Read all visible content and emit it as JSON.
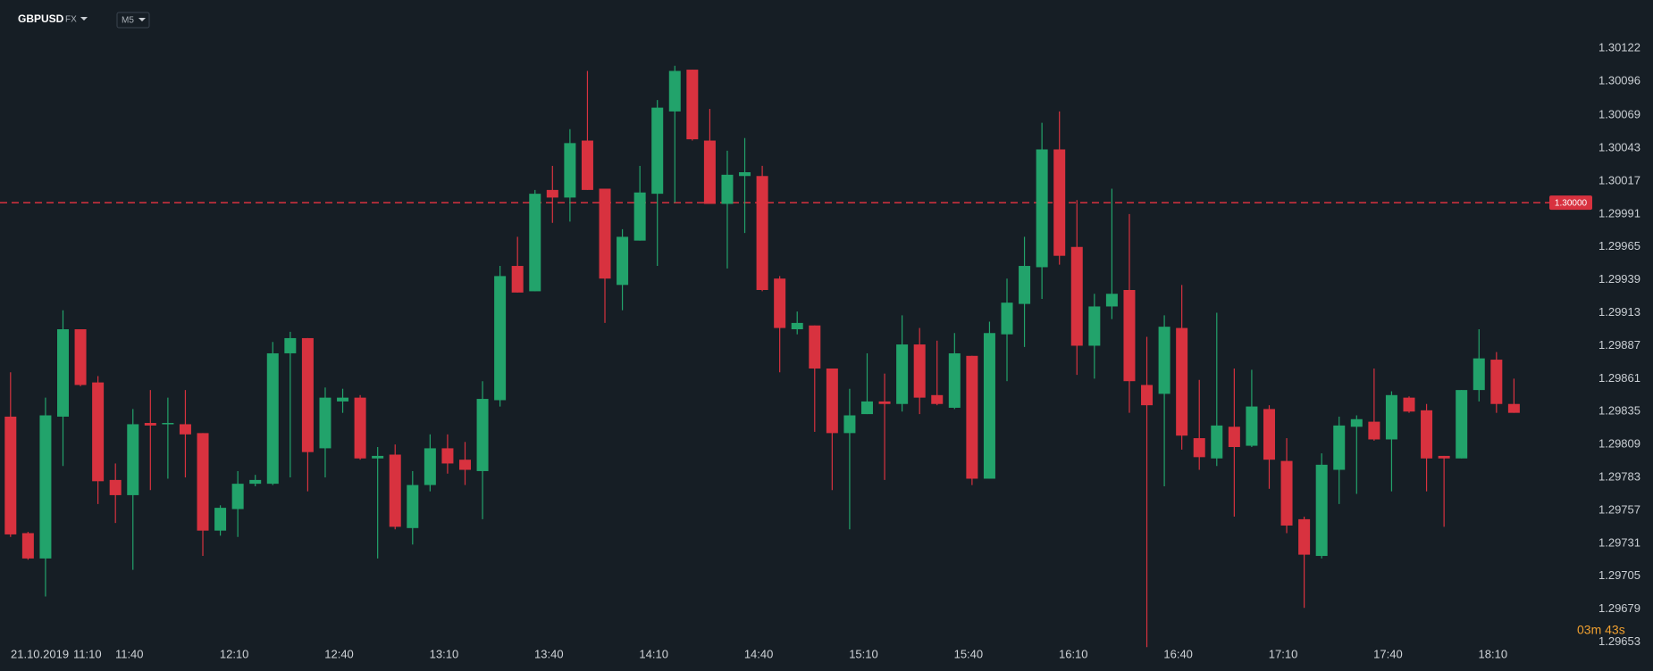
{
  "chart_data": {
    "type": "candlestick",
    "symbol": "GBPUSD",
    "market": "FX",
    "interval": "M5",
    "date_label": "21.10.2019",
    "countdown": "03m 43s",
    "up_color": "#22a36b",
    "down_color": "#d8323f",
    "price_line_color": "#d8323f",
    "current_price": {
      "value": 1.3,
      "label": "1.30000"
    },
    "ylim": [
      1.2964,
      1.3016
    ],
    "yticks": [
      1.30122,
      1.30096,
      1.30069,
      1.30043,
      1.30017,
      1.29991,
      1.29965,
      1.29939,
      1.29913,
      1.29887,
      1.29861,
      1.29835,
      1.29809,
      1.29783,
      1.29757,
      1.29731,
      1.29705,
      1.29679,
      1.29653
    ],
    "categories": [
      null,
      "11:10",
      null,
      null,
      null,
      null,
      null,
      "11:40",
      null,
      null,
      null,
      null,
      null,
      "12:10",
      null,
      null,
      null,
      null,
      null,
      "12:40",
      null,
      null,
      null,
      null,
      null,
      "13:10",
      null,
      null,
      null,
      null,
      null,
      "13:40",
      null,
      null,
      null,
      null,
      null,
      "14:10",
      null,
      null,
      null,
      null,
      null,
      "14:40",
      null,
      null,
      null,
      null,
      null,
      "15:10",
      null,
      null,
      null,
      null,
      null,
      "15:40",
      null,
      null,
      null,
      null,
      null,
      "16:10",
      null,
      null,
      null,
      null,
      null,
      "16:40",
      null,
      null,
      null,
      null,
      null,
      "17:10",
      null,
      null,
      null,
      null,
      null,
      "17:40",
      null,
      null,
      null,
      null,
      null,
      "18:10",
      null
    ],
    "open": [
      1.29831,
      1.29739,
      1.29719,
      1.29831,
      1.299,
      1.29858,
      1.29781,
      1.29769,
      1.29826,
      1.29825,
      1.29825,
      1.29818,
      1.29741,
      1.29758,
      1.29778,
      1.29778,
      1.29881,
      1.29893,
      1.29806,
      1.29843,
      1.29846,
      1.29798,
      1.29801,
      1.29743,
      1.29777,
      1.29806,
      1.29797,
      1.29788,
      1.29844,
      1.2995,
      1.2993,
      1.3001,
      1.30004,
      1.30049,
      1.30011,
      1.29935,
      1.2997,
      1.30007,
      1.30072,
      1.30105,
      1.30049,
      1.29999,
      1.30021,
      1.30021,
      1.2994,
      1.299,
      1.29903,
      1.29869,
      1.29818,
      1.29833,
      1.29843,
      1.29841,
      1.29888,
      1.29848,
      1.29838,
      1.29879,
      1.29782,
      1.29896,
      1.2992,
      1.29949,
      1.30042,
      1.29965,
      1.29887,
      1.29918,
      1.29931,
      1.29856,
      1.29849,
      1.29901,
      1.29814,
      1.29798,
      1.29823,
      1.29808,
      1.29837,
      1.29796,
      1.2975,
      1.29721,
      1.29789,
      1.29823,
      1.29827,
      1.29813,
      1.29846,
      1.29836,
      1.298,
      1.29798,
      1.29852,
      1.29876,
      1.29841
    ],
    "high": [
      1.29866,
      1.2974,
      1.29846,
      1.29915,
      1.299,
      1.29863,
      1.29794,
      1.29837,
      1.29852,
      1.29846,
      1.29852,
      1.29818,
      1.29761,
      1.29788,
      1.29785,
      1.2989,
      1.29898,
      1.29893,
      1.29854,
      1.29853,
      1.29848,
      1.29807,
      1.29809,
      1.29788,
      1.29817,
      1.29817,
      1.29811,
      1.29859,
      1.2995,
      1.29973,
      1.3001,
      1.30029,
      1.30058,
      1.30104,
      1.30011,
      1.29979,
      1.30029,
      1.30081,
      1.30108,
      1.30105,
      1.30074,
      1.30041,
      1.30051,
      1.30029,
      1.29942,
      1.29914,
      1.29903,
      1.29869,
      1.29853,
      1.29881,
      1.29865,
      1.29911,
      1.29901,
      1.29891,
      1.29897,
      1.29879,
      1.29906,
      1.2994,
      1.29973,
      1.30063,
      1.30072,
      1.30002,
      1.29928,
      1.30011,
      1.29991,
      1.29894,
      1.29911,
      1.29935,
      1.2986,
      1.29913,
      1.29869,
      1.29868,
      1.2984,
      1.29814,
      1.29752,
      1.29802,
      1.29831,
      1.29832,
      1.29869,
      1.29851,
      1.29847,
      1.29841,
      1.298,
      1.29852,
      1.299,
      1.29882,
      1.29861
    ],
    "low": [
      1.29736,
      1.29718,
      1.29689,
      1.29792,
      1.29855,
      1.29762,
      1.29747,
      1.2971,
      1.29773,
      1.29782,
      1.29783,
      1.29721,
      1.29737,
      1.29736,
      1.29776,
      1.29777,
      1.29783,
      1.29772,
      1.29783,
      1.29834,
      1.29797,
      1.29719,
      1.29742,
      1.2973,
      1.29772,
      1.29786,
      1.29777,
      1.2975,
      1.29839,
      1.29929,
      1.2993,
      1.29984,
      1.29985,
      1.3001,
      1.29905,
      1.29915,
      1.2997,
      1.2995,
      1.3,
      1.30049,
      1.29999,
      1.29948,
      1.29976,
      1.2993,
      1.29866,
      1.29896,
      1.29819,
      1.29773,
      1.29742,
      1.29833,
      1.29781,
      1.29835,
      1.29833,
      1.2984,
      1.29837,
      1.29777,
      1.29782,
      1.29859,
      1.29886,
      1.29924,
      1.29951,
      1.29864,
      1.29861,
      1.29908,
      1.29834,
      1.29649,
      1.29776,
      1.29805,
      1.29789,
      1.29792,
      1.29752,
      1.29807,
      1.29774,
      1.29739,
      1.2968,
      1.29719,
      1.29762,
      1.2977,
      1.29812,
      1.29772,
      1.29834,
      1.29772,
      1.29744,
      1.29798,
      1.29843,
      1.29834,
      1.29834
    ],
    "close": [
      1.29738,
      1.29719,
      1.29832,
      1.299,
      1.29856,
      1.2978,
      1.29769,
      1.29825,
      1.29824,
      1.29826,
      1.29817,
      1.29741,
      1.29759,
      1.29778,
      1.29781,
      1.29881,
      1.29893,
      1.29803,
      1.29846,
      1.29846,
      1.29798,
      1.298,
      1.29744,
      1.29777,
      1.29806,
      1.29794,
      1.29789,
      1.29845,
      1.29942,
      1.29929,
      1.30007,
      1.30004,
      1.30047,
      1.3001,
      1.2994,
      1.29973,
      1.30008,
      1.30075,
      1.30104,
      1.3005,
      1.29999,
      1.30022,
      1.30024,
      1.29931,
      1.29901,
      1.29905,
      1.29869,
      1.29818,
      1.29832,
      1.29843,
      1.29841,
      1.29888,
      1.29846,
      1.29841,
      1.29881,
      1.29782,
      1.29897,
      1.29921,
      1.2995,
      1.30042,
      1.29958,
      1.29887,
      1.29918,
      1.29928,
      1.29859,
      1.2984,
      1.29902,
      1.29816,
      1.29799,
      1.29824,
      1.29807,
      1.29839,
      1.29797,
      1.29745,
      1.29722,
      1.29793,
      1.29824,
      1.29829,
      1.29813,
      1.29848,
      1.29835,
      1.29798,
      1.29798,
      1.29852,
      1.29877,
      1.29841,
      1.29834
    ]
  }
}
